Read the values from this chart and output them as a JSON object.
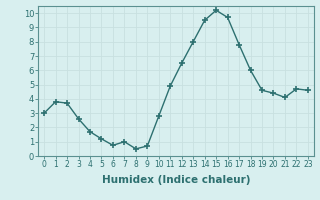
{
  "x": [
    0,
    1,
    2,
    3,
    4,
    5,
    6,
    7,
    8,
    9,
    10,
    11,
    12,
    13,
    14,
    15,
    16,
    17,
    18,
    19,
    20,
    21,
    22,
    23
  ],
  "y": [
    3.0,
    3.8,
    3.7,
    2.6,
    1.7,
    1.2,
    0.75,
    1.0,
    0.5,
    0.7,
    2.8,
    4.9,
    6.5,
    8.0,
    9.5,
    10.2,
    9.7,
    7.8,
    6.0,
    4.6,
    4.4,
    4.1,
    4.7,
    4.6
  ],
  "line_color": "#2d7070",
  "marker": "+",
  "marker_size": 4,
  "marker_lw": 1.2,
  "line_width": 1.0,
  "bg_color": "#d8efef",
  "grid_color": "#c8e0e0",
  "xlabel": "Humidex (Indice chaleur)",
  "xlabel_fontsize": 7.5,
  "xlabel_bold": true,
  "ylim": [
    0,
    10.5
  ],
  "xlim": [
    -0.5,
    23.5
  ],
  "yticks": [
    0,
    1,
    2,
    3,
    4,
    5,
    6,
    7,
    8,
    9,
    10
  ],
  "xtick_fontsize": 5.5,
  "ytick_fontsize": 6,
  "tick_color": "#2d7070",
  "spine_color": "#5a9090",
  "label_color": "#2d7070"
}
